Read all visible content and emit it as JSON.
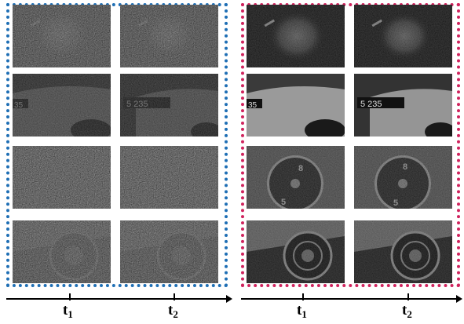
{
  "colors": {
    "left_frame": "#1f6fb5",
    "right_frame": "#d0245e",
    "axis": "#000000"
  },
  "timeline": {
    "left": [
      {
        "base": "t",
        "sub": "1"
      },
      {
        "base": "t",
        "sub": "2"
      }
    ],
    "right": [
      {
        "base": "t",
        "sub": "1"
      },
      {
        "base": "t",
        "sub": "2"
      }
    ]
  },
  "images": {
    "rows": [
      "spray-burst",
      "car-door-license-plate",
      "rotating-disk-digits",
      "spinning-wheel"
    ],
    "row2_plate_text": {
      "t1": "35",
      "t2": "5 235"
    },
    "row3_digits": [
      "8",
      "5"
    ]
  }
}
